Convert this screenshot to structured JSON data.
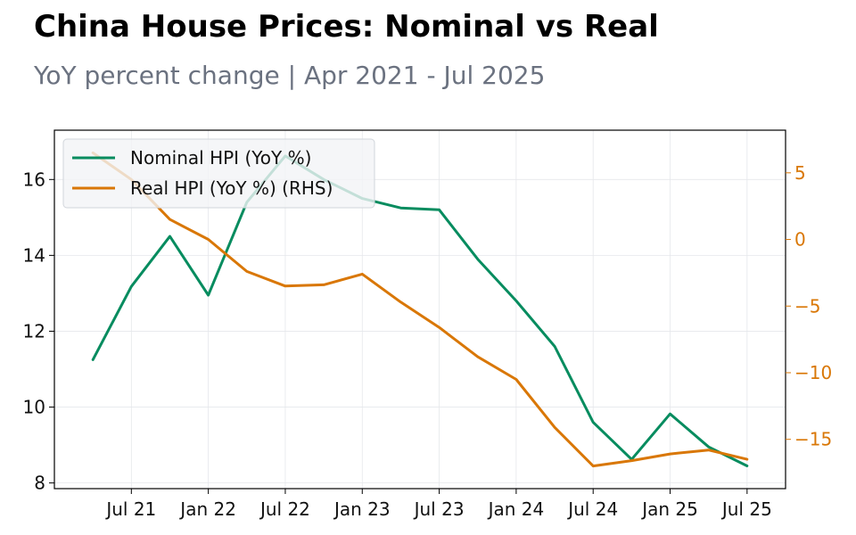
{
  "header": {
    "title": "China House Prices: Nominal vs Real",
    "subtitle": "YoY percent change | Apr 2021 - Jul 2025"
  },
  "chart_data": {
    "type": "line",
    "title": "China House Prices: Nominal vs Real",
    "subtitle": "YoY percent change | Apr 2021 - Jul 2025",
    "x": [
      "2021-04",
      "2021-07",
      "2021-10",
      "2022-01",
      "2022-04",
      "2022-07",
      "2022-10",
      "2023-01",
      "2023-04",
      "2023-07",
      "2023-10",
      "2024-01",
      "2024-04",
      "2024-07",
      "2024-10",
      "2025-01",
      "2025-04",
      "2025-07"
    ],
    "x_ticks": [
      {
        "date": "2021-07",
        "label": "Jul 21"
      },
      {
        "date": "2022-01",
        "label": "Jan 22"
      },
      {
        "date": "2022-07",
        "label": "Jul 22"
      },
      {
        "date": "2023-01",
        "label": "Jan 23"
      },
      {
        "date": "2023-07",
        "label": "Jul 23"
      },
      {
        "date": "2024-01",
        "label": "Jan 24"
      },
      {
        "date": "2024-07",
        "label": "Jul 24"
      },
      {
        "date": "2025-01",
        "label": "Jan 25"
      },
      {
        "date": "2025-07",
        "label": "Jul 25"
      }
    ],
    "x_range": [
      "2021-01",
      "2025-10"
    ],
    "series": [
      {
        "name": "Nominal HPI (YoY %)",
        "axis": "left",
        "color": "#078c5f",
        "values": [
          11.25,
          13.18,
          14.5,
          12.95,
          15.4,
          16.62,
          16.0,
          15.5,
          15.25,
          15.2,
          13.9,
          12.8,
          11.6,
          9.6,
          8.62,
          9.82,
          8.95,
          8.45
        ]
      },
      {
        "name": "Real HPI (YoY %) (RHS)",
        "axis": "right",
        "color": "#d97706",
        "values": [
          6.5,
          4.5,
          1.5,
          0.0,
          -2.4,
          -3.5,
          -3.4,
          -2.6,
          -4.7,
          -6.6,
          -8.8,
          -10.5,
          -14.1,
          -17.0,
          -16.6,
          -16.1,
          -15.8,
          -16.5
        ]
      }
    ],
    "y_left": {
      "range": [
        7.85,
        17.3
      ],
      "ticks": [
        8,
        10,
        12,
        14,
        16
      ]
    },
    "y_right": {
      "range": [
        -18.7,
        8.2
      ],
      "ticks": [
        5,
        0,
        -5,
        -10,
        -15
      ],
      "tick_labels": [
        "5",
        "0",
        "−5",
        "−10",
        "−15"
      ],
      "color": "#d97706"
    },
    "grid": true,
    "legend": "top-left",
    "colors": {
      "nominal": "#078c5f",
      "real": "#d97706",
      "legend_bg": "#f3f4f6",
      "grid": "#e5e7eb"
    }
  }
}
